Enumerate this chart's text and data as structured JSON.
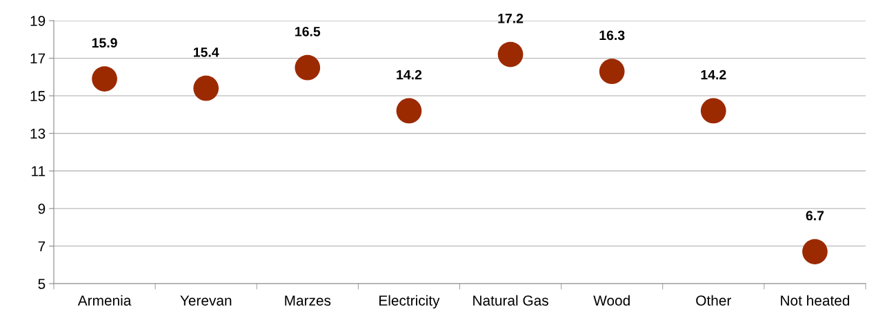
{
  "chart_data": {
    "type": "scatter",
    "categories": [
      "Armenia",
      "Yerevan",
      "Marzes",
      "Electricity",
      "Natural Gas",
      "Wood",
      "Other",
      "Not heated"
    ],
    "values": [
      15.9,
      15.4,
      16.5,
      14.2,
      17.2,
      16.3,
      14.2,
      6.7
    ],
    "color": "#9c2a00",
    "marker": "circle",
    "ylim": [
      5,
      19
    ],
    "yticks": [
      5,
      7,
      9,
      11,
      13,
      15,
      17,
      19
    ],
    "grid": "y",
    "data_labels": true
  }
}
